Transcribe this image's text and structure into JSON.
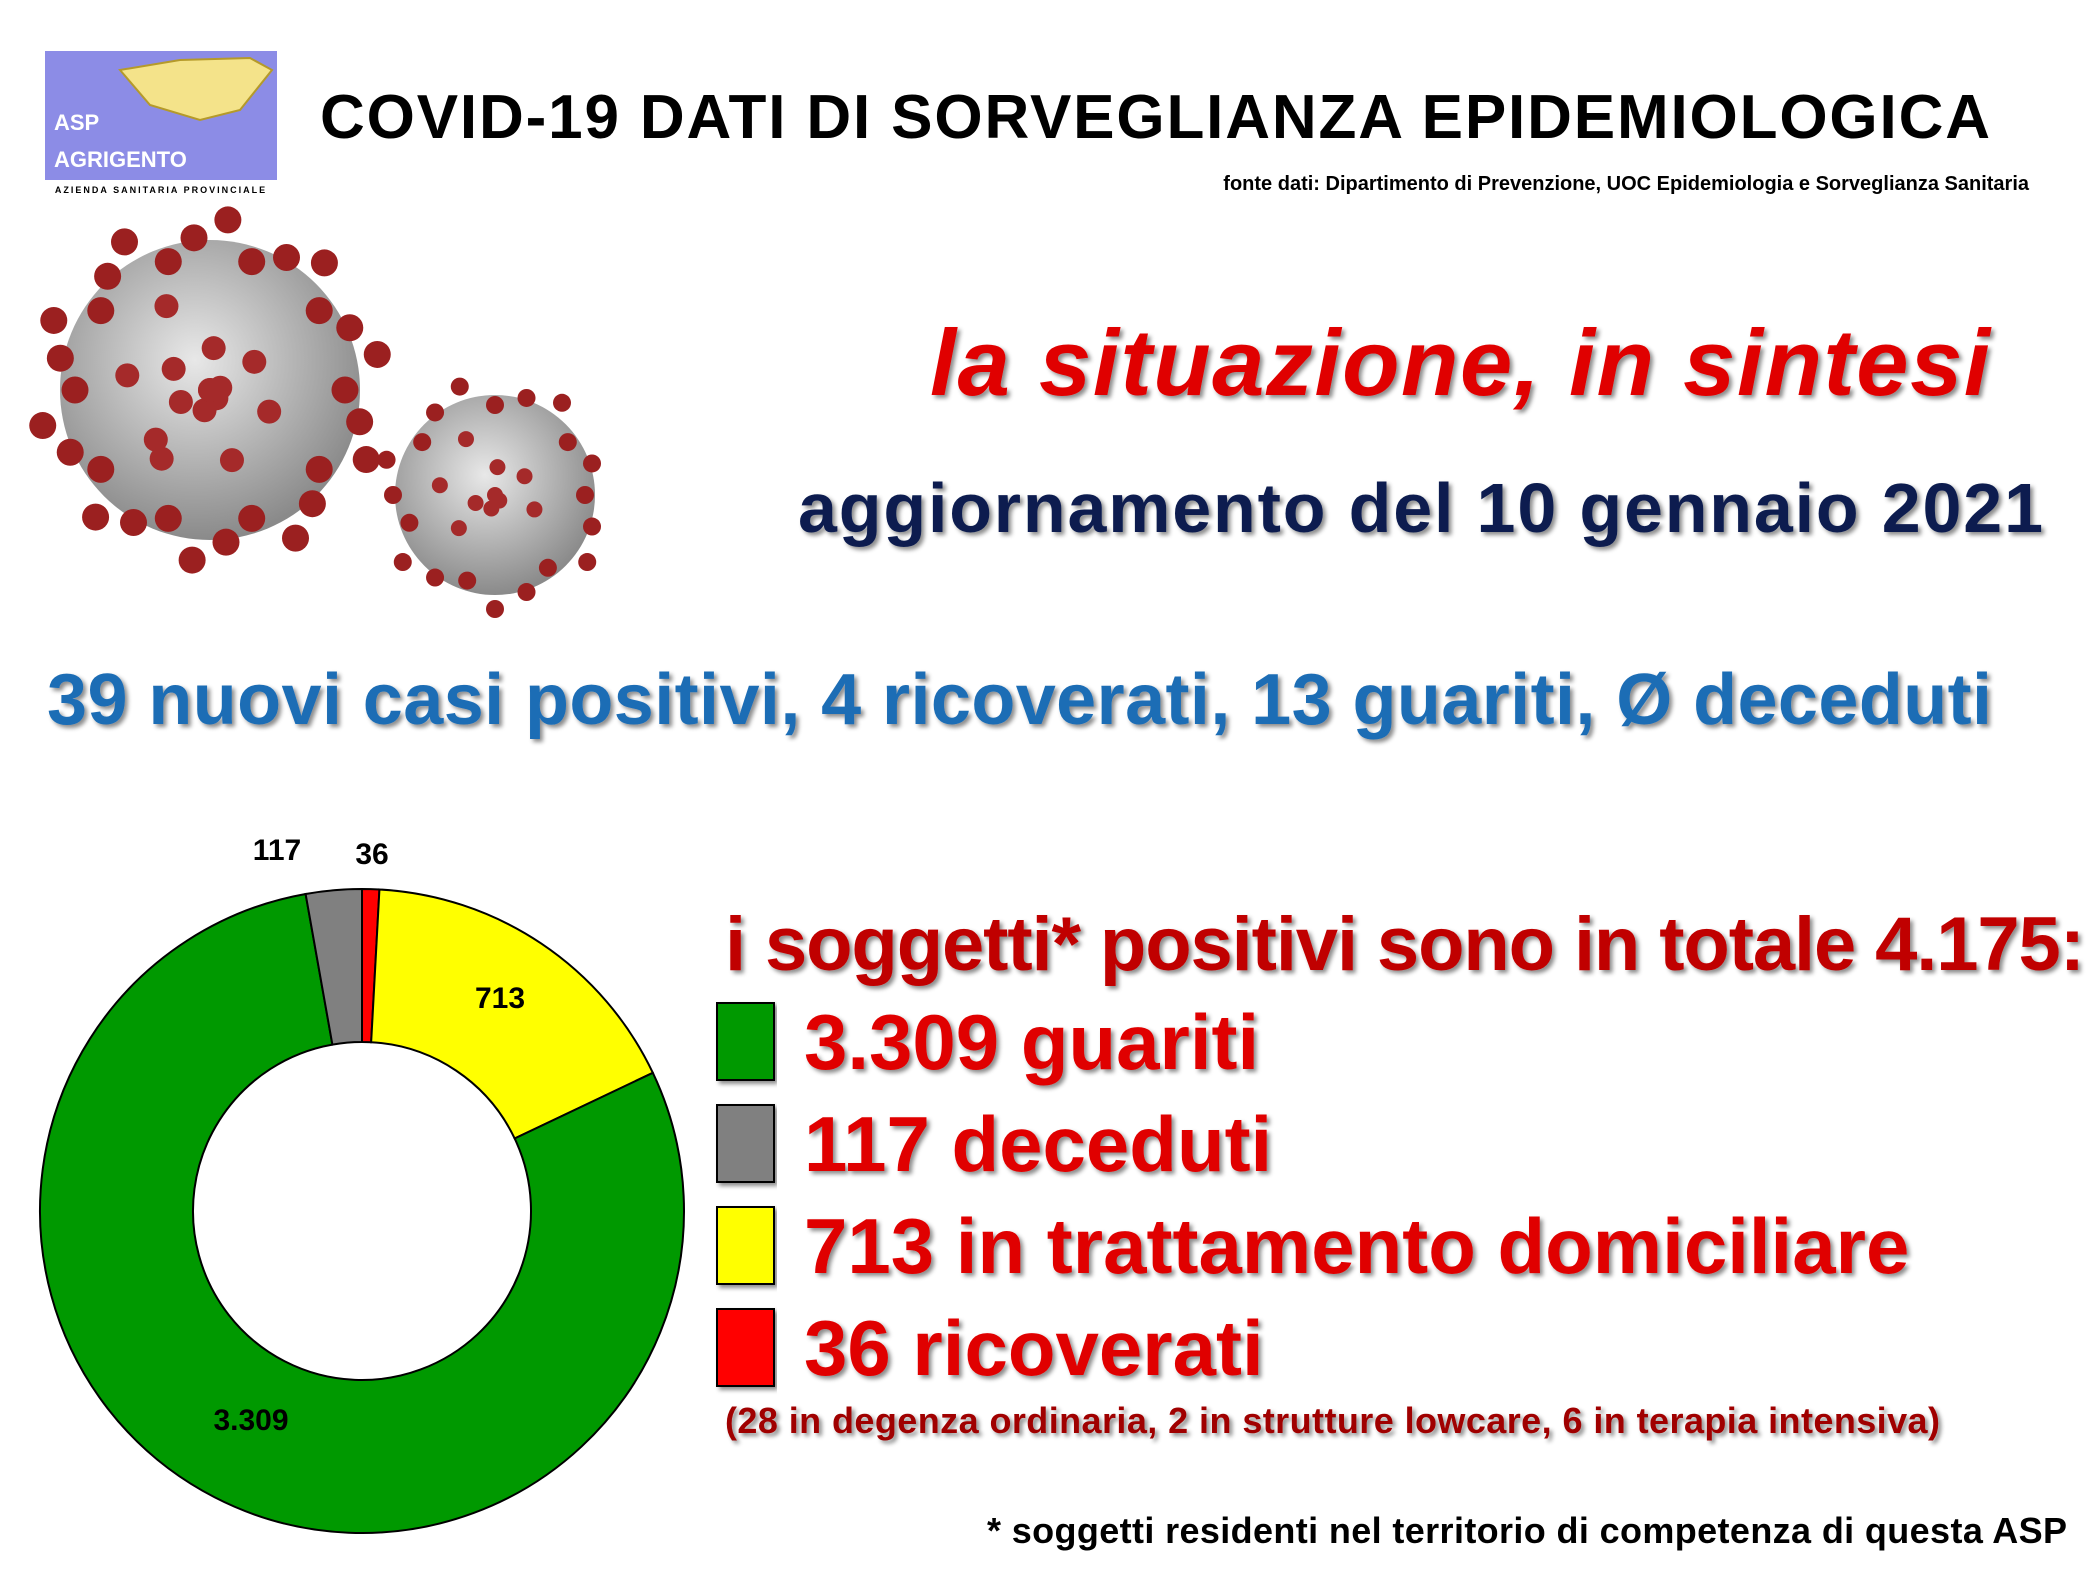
{
  "header": {
    "title": "COVID-19    DATI DI SORVEGLIANZA EPIDEMIOLOGICA",
    "logo_line1": "ASP",
    "logo_line2": "AGRIGENTO",
    "logo_sub": "AZIENDA SANITARIA PROVINCIALE",
    "source": "fonte dati: Dipartimento di Prevenzione, UOC Epidemiologia e Sorveglianza Sanitaria"
  },
  "subtitle": "la situazione, in sintesi",
  "update": "aggiornamento del 10 gennaio 2021",
  "headline": "39 nuovi casi positivi, 4 ricoverati, 13 guariti, Ø deceduti",
  "legend_title": "i soggetti* positivi sono in totale 4.175:",
  "chart_data": {
    "type": "donut",
    "categories": [
      "3.309 guariti",
      "117 deceduti",
      "713 in trattamento domiciliare",
      "36 ricoverati"
    ],
    "values": [
      3309,
      117,
      713,
      36
    ],
    "value_labels": [
      "3.309",
      "117",
      "713",
      "36"
    ],
    "colors": [
      "#009900",
      "#808080",
      "#ffff00",
      "#ff0000"
    ]
  },
  "note": "(28 in degenza ordinaria, 2 in strutture lowcare, 6 in terapia intensiva)",
  "footnote": "* soggetti residenti nel territorio di competenza di questa ASP"
}
